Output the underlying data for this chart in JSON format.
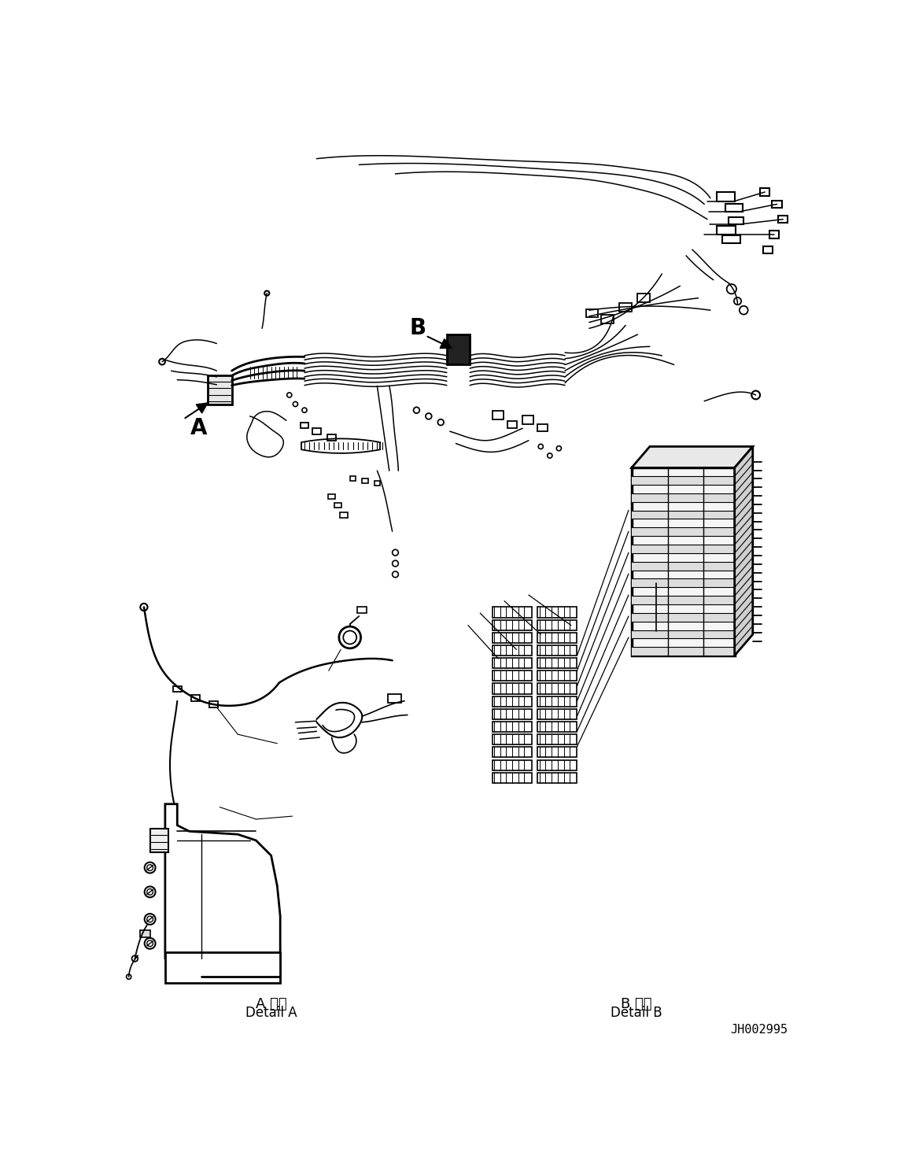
{
  "background_color": "#ffffff",
  "line_color": "#000000",
  "part_number": "JH002995",
  "label_A": "A",
  "label_B": "B",
  "detail_A_jp": "A 詳細",
  "detail_A_en": "Detail A",
  "detail_B_jp": "B 詳細",
  "detail_B_en": "Detail B",
  "figsize": [
    11.63,
    14.88
  ],
  "dpi": 100
}
